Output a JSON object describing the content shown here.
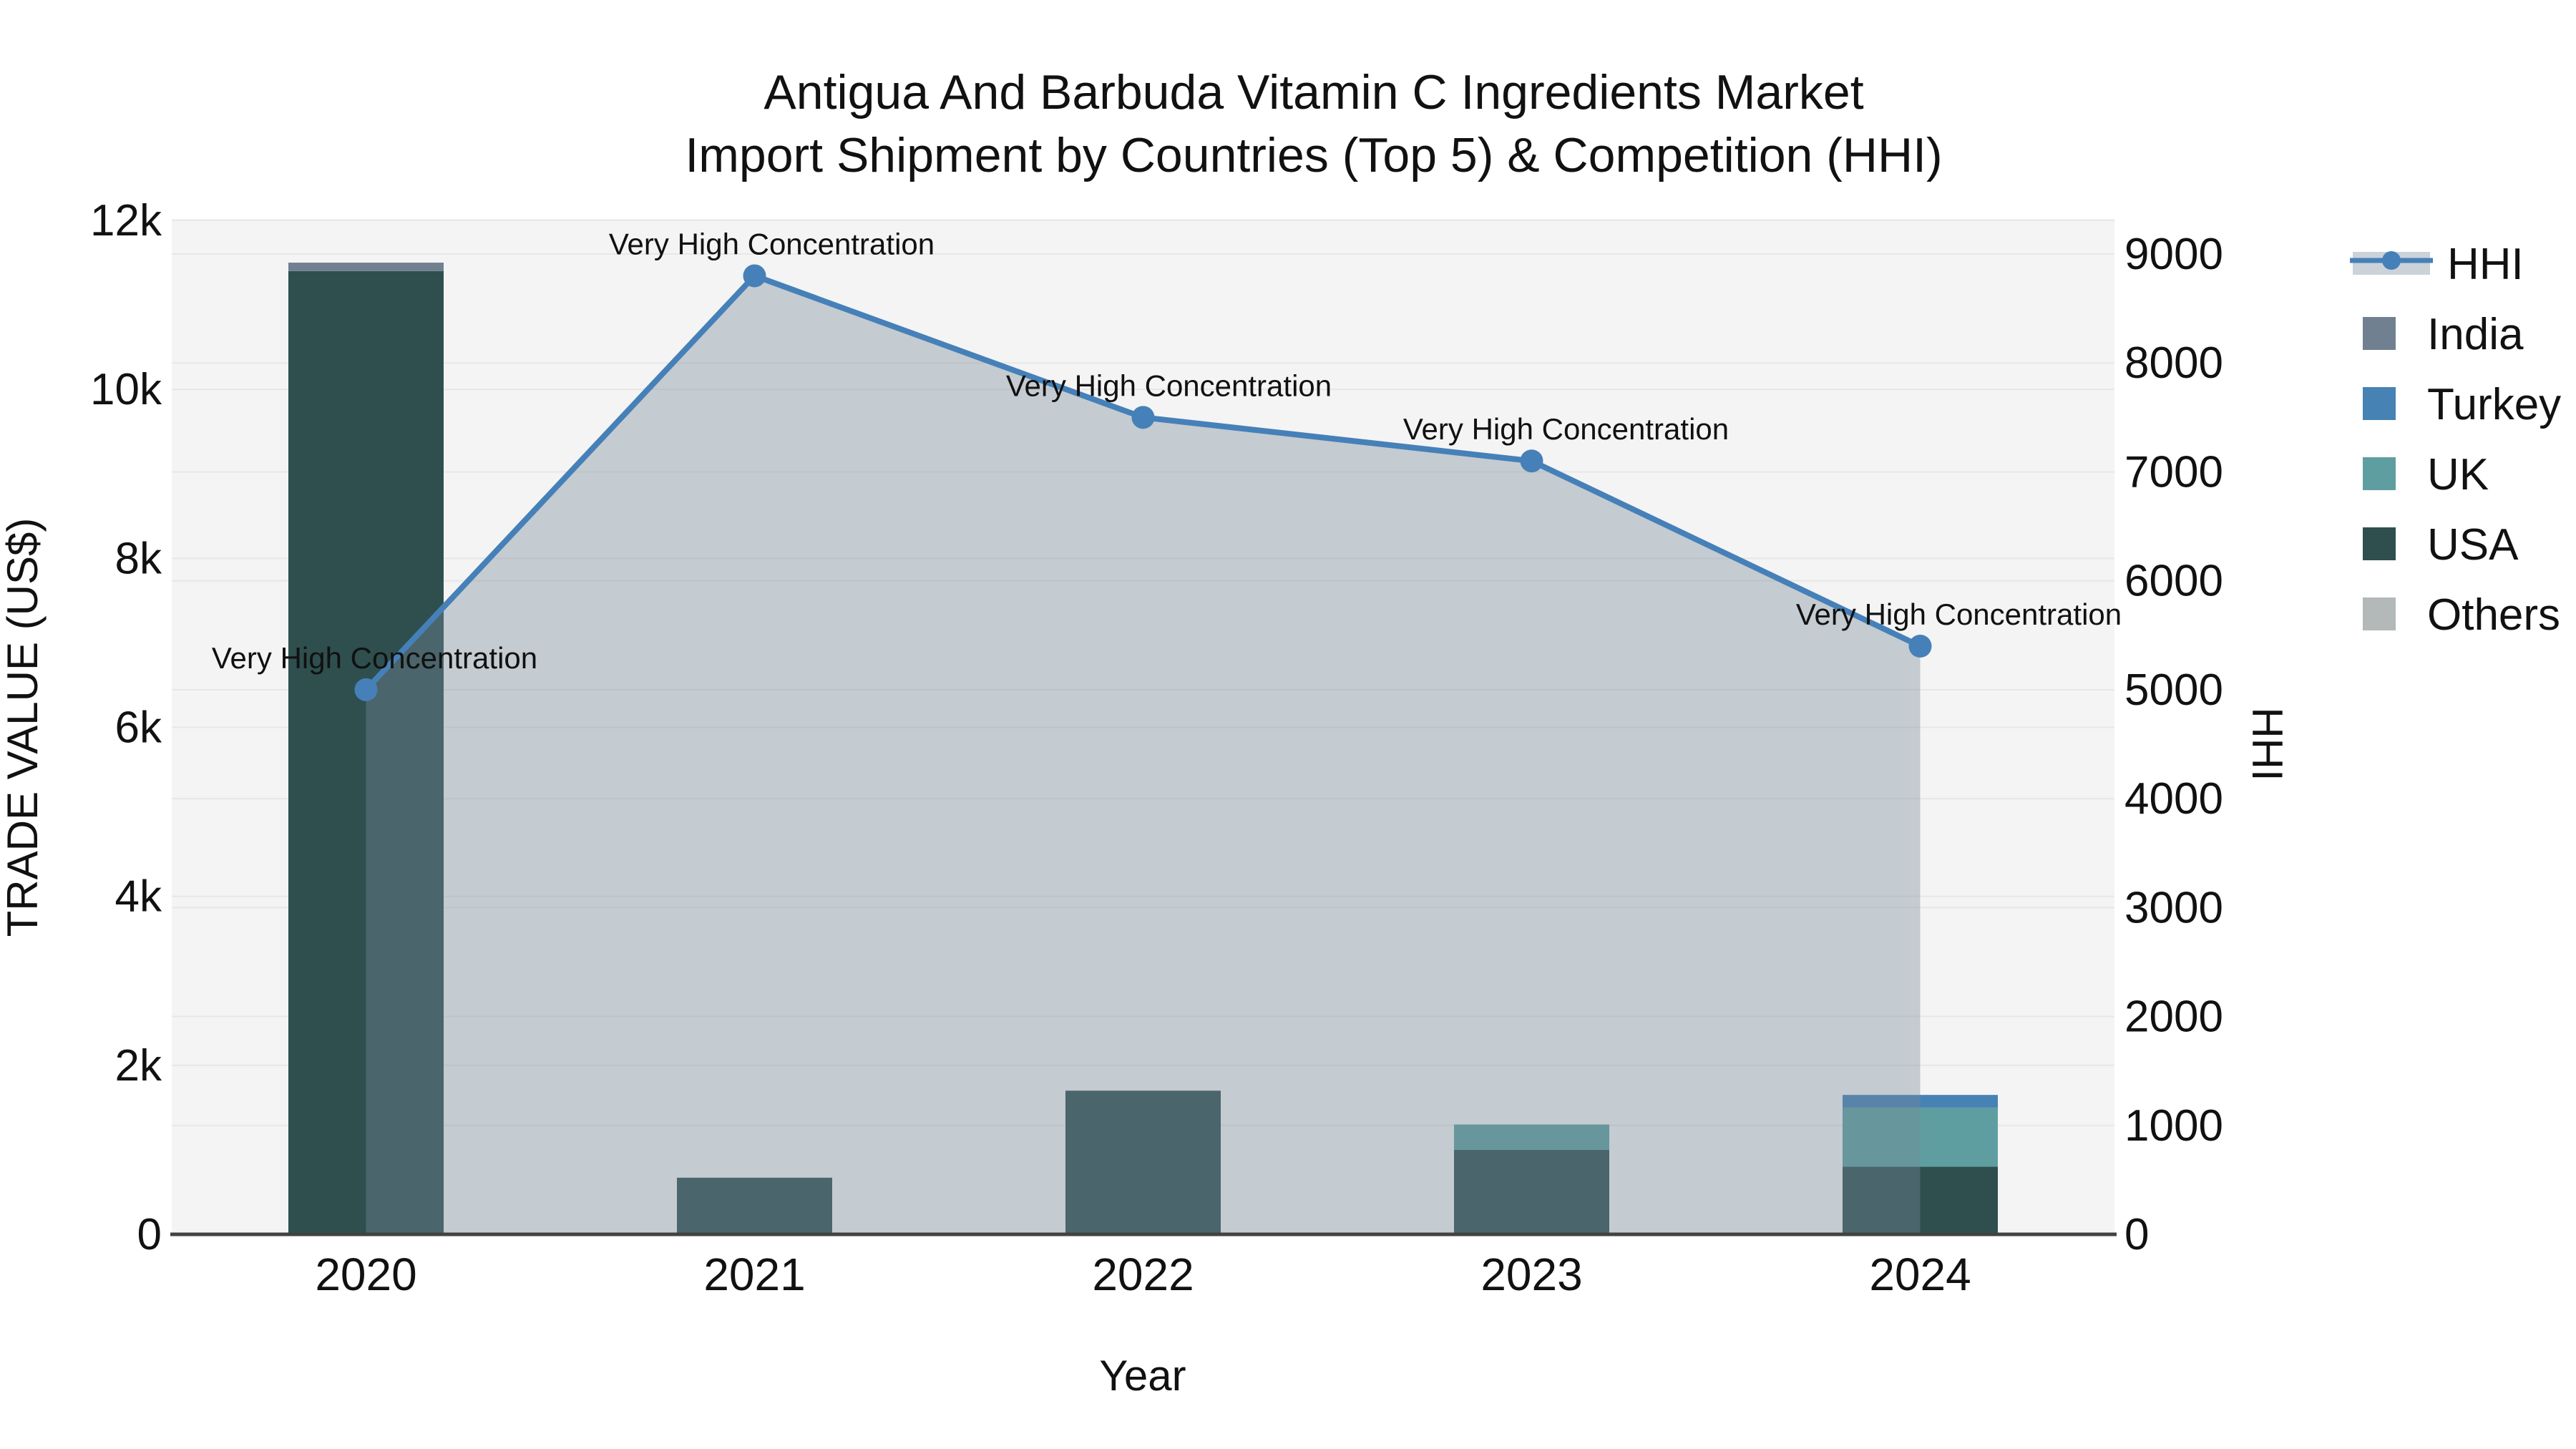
{
  "chart_data": {
    "type": "combo-bar-line",
    "title_line1": "Antigua And Barbuda Vitamin C Ingredients Market",
    "title_line2": "Import Shipment by Countries (Top 5) & Competition (HHI)",
    "categories": [
      "2020",
      "2021",
      "2022",
      "2023",
      "2024"
    ],
    "bar_series": [
      {
        "name": "USA",
        "color": "#2F4F4F",
        "values": [
          11400,
          670,
          1700,
          1000,
          800
        ]
      },
      {
        "name": "UK",
        "color": "#5F9EA0",
        "values": [
          0,
          0,
          0,
          300,
          700
        ]
      },
      {
        "name": "Turkey",
        "color": "#4682B4",
        "values": [
          0,
          0,
          0,
          0,
          150
        ]
      },
      {
        "name": "India",
        "color": "#708090",
        "values": [
          100,
          0,
          0,
          0,
          0
        ]
      },
      {
        "name": "Others",
        "color": "#B3B8B8",
        "values": [
          0,
          0,
          0,
          0,
          0
        ]
      }
    ],
    "line_series": {
      "name": "HHI",
      "color": "#4680B8",
      "area_fill": "rgba(119,136,153,0.38)",
      "legend_band_fill": "#cbd2d8",
      "values": [
        5000,
        8800,
        7500,
        7100,
        5400
      ]
    },
    "annotations": [
      "Very High Concentration",
      "Very High Concentration",
      "Very High Concentration",
      "Very High Concentration",
      "Very High Concentration"
    ],
    "x_axis": {
      "title": "Year"
    },
    "y_left": {
      "title": "TRADE VALUE (US$)",
      "lim": [
        0,
        12000
      ],
      "ticks": [
        0,
        2000,
        4000,
        6000,
        8000,
        10000,
        12000
      ],
      "tick_labels": [
        "0",
        "2k",
        "4k",
        "6k",
        "8k",
        "10k",
        "12k"
      ]
    },
    "y_right": {
      "title": "HHI",
      "lim": [
        0,
        9000
      ],
      "ticks": [
        0,
        1000,
        2000,
        3000,
        4000,
        5000,
        6000,
        7000,
        8000,
        9000
      ],
      "tick_labels": [
        "0",
        "1000",
        "2000",
        "3000",
        "4000",
        "5000",
        "6000",
        "7000",
        "8000",
        "9000"
      ]
    },
    "legend": [
      "HHI",
      "India",
      "Turkey",
      "UK",
      "USA",
      "Others"
    ],
    "colors": {
      "plot_bg": "#f4f4f4",
      "grid": "#e7e7e7",
      "axis_line": "#424242",
      "text": "#111111",
      "title_text": "#232323"
    },
    "layout_hints": {
      "legend_position": "right",
      "grid": "on",
      "bar_mode": "stacked",
      "area_under_line": true
    }
  }
}
